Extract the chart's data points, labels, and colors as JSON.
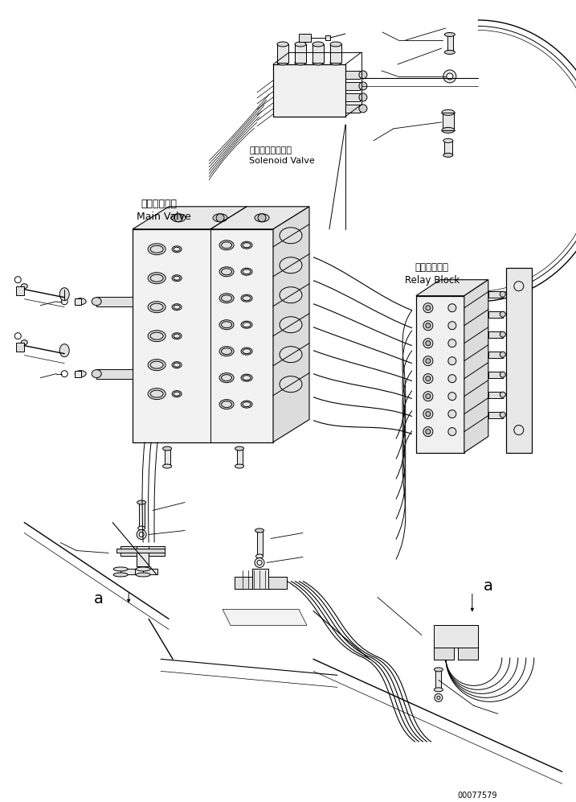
{
  "bg_color": "#ffffff",
  "lc": "#000000",
  "lw": 0.7,
  "labels": {
    "solenoid_jp": "ソレノイドバルブ",
    "solenoid_en": "Solenoid Valve",
    "main_valve_jp": "メインバルブ",
    "main_valve_en": "Main Valve",
    "relay_jp": "中継ブロック",
    "relay_en": "Relay Block",
    "part_num": "00077579",
    "label_a": "a"
  }
}
